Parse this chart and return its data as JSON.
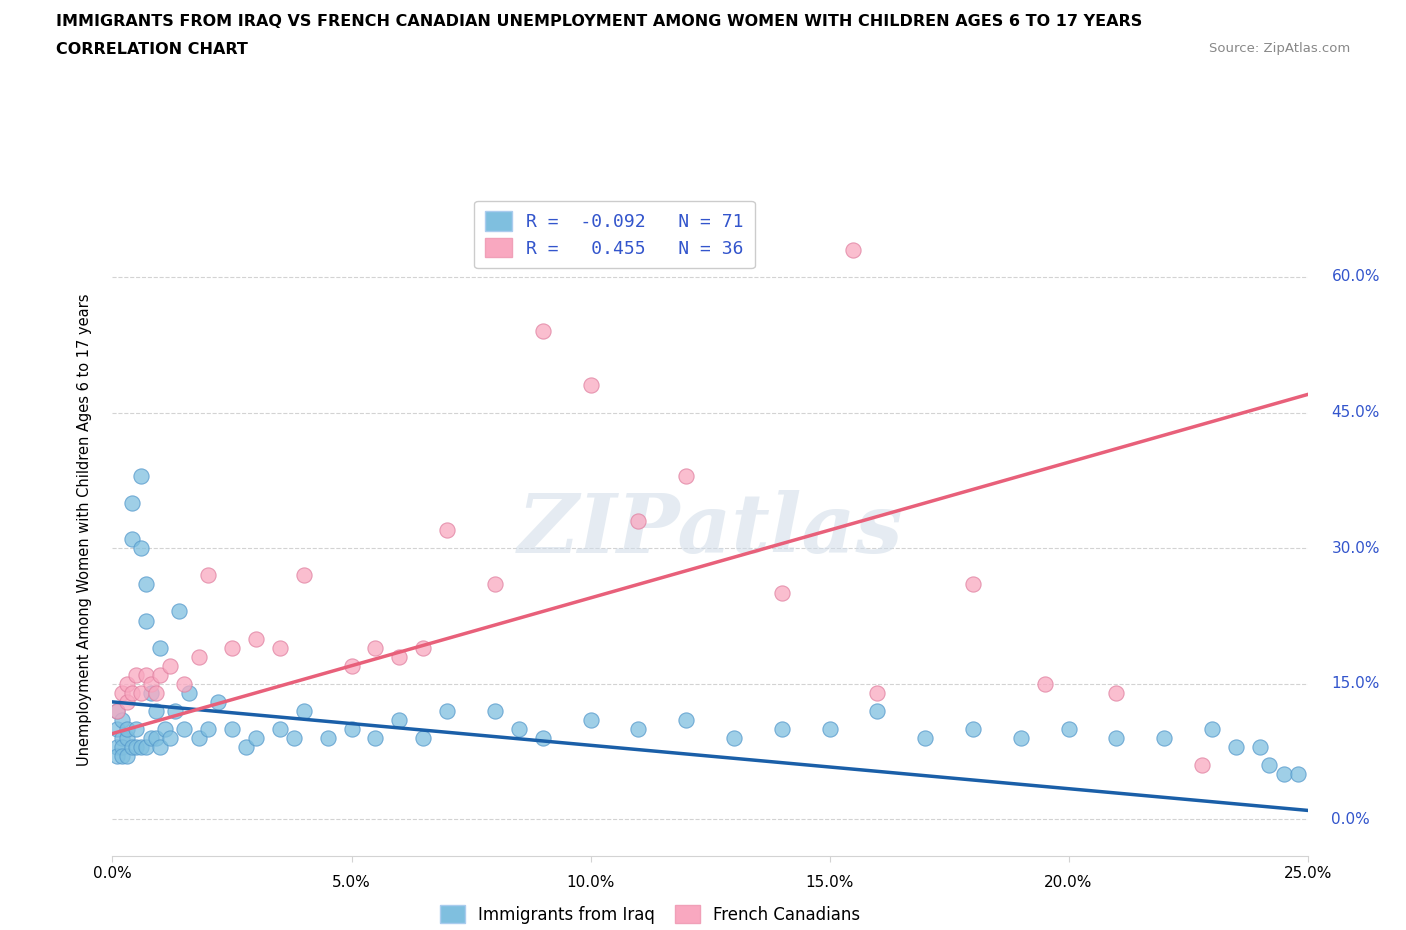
{
  "title": "IMMIGRANTS FROM IRAQ VS FRENCH CANADIAN UNEMPLOYMENT AMONG WOMEN WITH CHILDREN AGES 6 TO 17 YEARS",
  "subtitle": "CORRELATION CHART",
  "source": "Source: ZipAtlas.com",
  "ylabel": "Unemployment Among Women with Children Ages 6 to 17 years",
  "xlim": [
    0.0,
    0.25
  ],
  "ylim": [
    -0.04,
    0.68
  ],
  "xticks": [
    0.0,
    0.05,
    0.1,
    0.15,
    0.2,
    0.25
  ],
  "xtick_labels_bottom": [
    "0.0%",
    "",
    "",
    "",
    "",
    "25.0%"
  ],
  "xtick_labels_top": [
    "",
    "5.0%",
    "10.0%",
    "15.0%",
    "20.0%",
    ""
  ],
  "yticks": [
    0.0,
    0.15,
    0.3,
    0.45,
    0.6
  ],
  "ytick_labels": [
    "0.0%",
    "15.0%",
    "30.0%",
    "45.0%",
    "60.0%"
  ],
  "blue_color": "#7fbfdf",
  "pink_color": "#f9a8c0",
  "blue_line_color": "#1a5fa8",
  "pink_line_color": "#e8607a",
  "blue_R": -0.092,
  "blue_N": 71,
  "pink_R": 0.455,
  "pink_N": 36,
  "legend_R_color": "#3355cc",
  "watermark": "ZIPatlas",
  "blue_intercept": 0.13,
  "blue_slope": -0.48,
  "pink_intercept": 0.095,
  "pink_slope": 1.5,
  "blue_scatter_x": [
    0.001,
    0.001,
    0.001,
    0.001,
    0.002,
    0.002,
    0.002,
    0.002,
    0.003,
    0.003,
    0.003,
    0.004,
    0.004,
    0.004,
    0.005,
    0.005,
    0.006,
    0.006,
    0.006,
    0.007,
    0.007,
    0.007,
    0.008,
    0.008,
    0.009,
    0.009,
    0.01,
    0.01,
    0.011,
    0.012,
    0.013,
    0.014,
    0.015,
    0.016,
    0.018,
    0.02,
    0.022,
    0.025,
    0.028,
    0.03,
    0.035,
    0.038,
    0.04,
    0.045,
    0.05,
    0.055,
    0.06,
    0.065,
    0.07,
    0.08,
    0.085,
    0.09,
    0.1,
    0.11,
    0.12,
    0.13,
    0.14,
    0.15,
    0.16,
    0.17,
    0.18,
    0.19,
    0.2,
    0.21,
    0.22,
    0.23,
    0.235,
    0.24,
    0.242,
    0.245,
    0.248
  ],
  "blue_scatter_y": [
    0.1,
    0.12,
    0.08,
    0.07,
    0.09,
    0.11,
    0.08,
    0.07,
    0.09,
    0.1,
    0.07,
    0.31,
    0.35,
    0.08,
    0.1,
    0.08,
    0.38,
    0.3,
    0.08,
    0.26,
    0.22,
    0.08,
    0.14,
    0.09,
    0.12,
    0.09,
    0.19,
    0.08,
    0.1,
    0.09,
    0.12,
    0.23,
    0.1,
    0.14,
    0.09,
    0.1,
    0.13,
    0.1,
    0.08,
    0.09,
    0.1,
    0.09,
    0.12,
    0.09,
    0.1,
    0.09,
    0.11,
    0.09,
    0.12,
    0.12,
    0.1,
    0.09,
    0.11,
    0.1,
    0.11,
    0.09,
    0.1,
    0.1,
    0.12,
    0.09,
    0.1,
    0.09,
    0.1,
    0.09,
    0.09,
    0.1,
    0.08,
    0.08,
    0.06,
    0.05,
    0.05
  ],
  "pink_scatter_x": [
    0.001,
    0.002,
    0.003,
    0.003,
    0.004,
    0.005,
    0.006,
    0.007,
    0.008,
    0.009,
    0.01,
    0.012,
    0.015,
    0.018,
    0.02,
    0.025,
    0.03,
    0.035,
    0.04,
    0.05,
    0.055,
    0.06,
    0.065,
    0.07,
    0.08,
    0.09,
    0.1,
    0.11,
    0.12,
    0.14,
    0.155,
    0.16,
    0.18,
    0.195,
    0.21,
    0.228
  ],
  "pink_scatter_y": [
    0.12,
    0.14,
    0.15,
    0.13,
    0.14,
    0.16,
    0.14,
    0.16,
    0.15,
    0.14,
    0.16,
    0.17,
    0.15,
    0.18,
    0.27,
    0.19,
    0.2,
    0.19,
    0.27,
    0.17,
    0.19,
    0.18,
    0.19,
    0.32,
    0.26,
    0.54,
    0.48,
    0.33,
    0.38,
    0.25,
    0.63,
    0.14,
    0.26,
    0.15,
    0.14,
    0.06
  ]
}
